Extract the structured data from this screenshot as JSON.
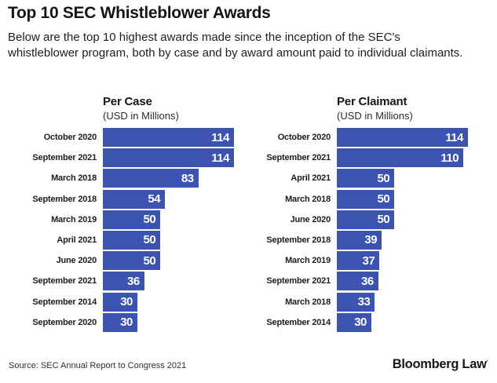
{
  "page": {
    "title": "Top 10 SEC Whistleblower Awards",
    "subtitle": "Below are the top 10 highest awards made since the inception of the SEC's whistleblower program, both by case and by award amount paid to individual claimants.",
    "source": "Source: SEC Annual Report to Congress 2021",
    "brand": "Bloomberg Law",
    "brand_mark": "·"
  },
  "colors": {
    "bar": "#3c53b2",
    "bar_value_text": "#ffffff"
  },
  "chart_data": [
    {
      "type": "bar",
      "orientation": "horizontal",
      "title": "Per Case",
      "subtitle": "(USD in Millions)",
      "categories": [
        "October 2020",
        "September 2021",
        "March 2018",
        "September 2018",
        "March 2019",
        "April 2021",
        "June 2020",
        "September 2021",
        "September 2014",
        "September 2020"
      ],
      "values": [
        114,
        114,
        83,
        54,
        50,
        50,
        50,
        36,
        30,
        30
      ],
      "xlim": [
        0,
        114
      ],
      "value_labels": "inside-end",
      "grid": false,
      "legend": false
    },
    {
      "type": "bar",
      "orientation": "horizontal",
      "title": "Per Claimant",
      "subtitle": "(USD in Millions)",
      "categories": [
        "October 2020",
        "September 2021",
        "April 2021",
        "March 2018",
        "June 2020",
        "September 2018",
        "March 2019",
        "September 2021",
        "March 2018",
        "September 2014"
      ],
      "values": [
        114,
        110,
        50,
        50,
        50,
        39,
        37,
        36,
        33,
        30
      ],
      "xlim": [
        0,
        114
      ],
      "value_labels": "inside-end",
      "grid": false,
      "legend": false
    }
  ]
}
